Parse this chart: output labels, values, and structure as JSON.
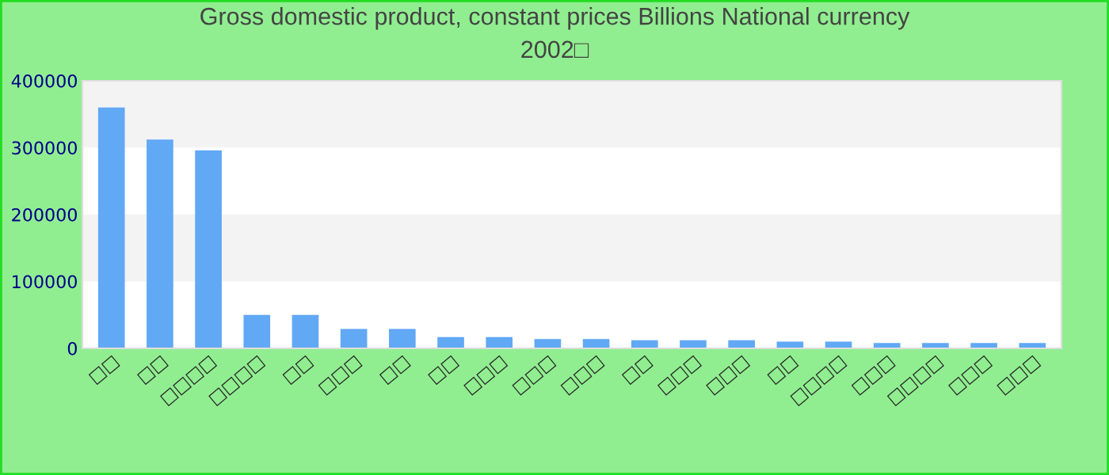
{
  "chart_data": {
    "type": "bar",
    "title": "Gross domestic product, constant prices Billions National currency\n2002□",
    "categories": [
      "□□",
      "□□",
      "□□□□",
      "□□□□",
      "□□",
      "□□□",
      "□□",
      "□□",
      "□□□",
      "□□□",
      "□□□",
      "□□",
      "□□□",
      "□□□",
      "□□",
      "□□□□",
      "□□□",
      "□□□□",
      "□□□",
      "□□□"
    ],
    "values": [
      360000,
      312000,
      296000,
      50000,
      50000,
      29000,
      29000,
      17000,
      17000,
      14000,
      14000,
      12000,
      12000,
      12000,
      10000,
      10000,
      8000,
      8000,
      8000,
      8000
    ],
    "color": "#61a8f5",
    "ylim": [
      0,
      400000
    ],
    "yticks": [
      0,
      100000,
      200000,
      300000,
      400000
    ],
    "legend": false
  }
}
